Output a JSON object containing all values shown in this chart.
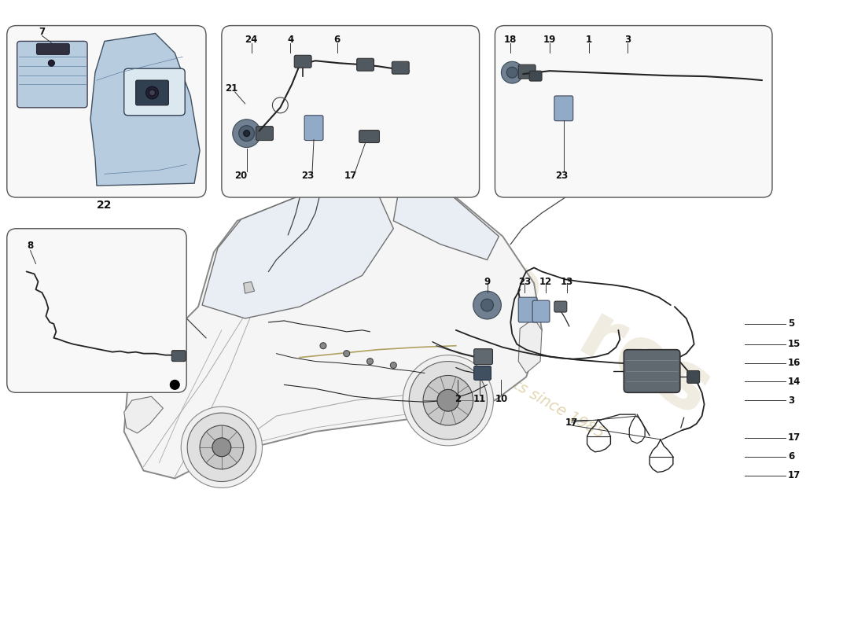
{
  "bg_color": "#ffffff",
  "watermark_color1": "#c8b090",
  "watermark_color2": "#d4c070",
  "box_ec": "#555555",
  "box_fc": "#ffffff",
  "label_fc": "#000000",
  "part_line_color": "#333333",
  "wire_color": "#222222",
  "component_fc": "#606870",
  "component_ec": "#303030",
  "blue_part_fc": "#90aac8",
  "blue_part_ec": "#404858",
  "car_body_fc": "#f5f5f5",
  "car_body_ec": "#888888",
  "car_glass_fc": "#e8eef4",
  "car_glass_ec": "#707070",
  "panel_fc": "#b8cce0",
  "panel_ec": "#405060"
}
